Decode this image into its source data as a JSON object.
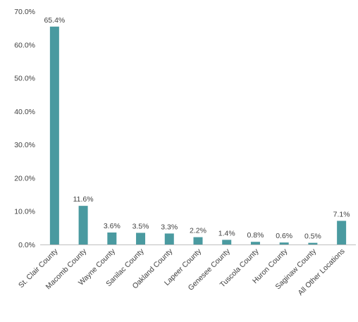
{
  "colors": {
    "bar": "#4a9aa0",
    "axis": "#bfbfbf",
    "text": "#404040"
  },
  "chart_data": {
    "type": "bar",
    "categories": [
      "St. Clair County",
      "Macomb County",
      "Wayne County",
      "Sanilac County",
      "Oakland County",
      "Lapeer County",
      "Genesee County",
      "Tuscola County",
      "Huron County",
      "Saginaw County",
      "All Other Locations"
    ],
    "values": [
      65.4,
      11.6,
      3.6,
      3.5,
      3.3,
      2.2,
      1.4,
      0.8,
      0.6,
      0.5,
      7.1
    ],
    "data_labels": [
      "65.4%",
      "11.6%",
      "3.6%",
      "3.5%",
      "3.3%",
      "2.2%",
      "1.4%",
      "0.8%",
      "0.6%",
      "0.5%",
      "7.1%"
    ],
    "y_ticks": [
      0,
      10,
      20,
      30,
      40,
      50,
      60,
      70
    ],
    "y_tick_labels": [
      "0.0%",
      "10.0%",
      "20.0%",
      "30.0%",
      "40.0%",
      "50.0%",
      "60.0%",
      "70.0%"
    ],
    "ylim": [
      0,
      70
    ],
    "title": "",
    "xlabel": "",
    "ylabel": "",
    "grid": false,
    "legend": "none"
  }
}
